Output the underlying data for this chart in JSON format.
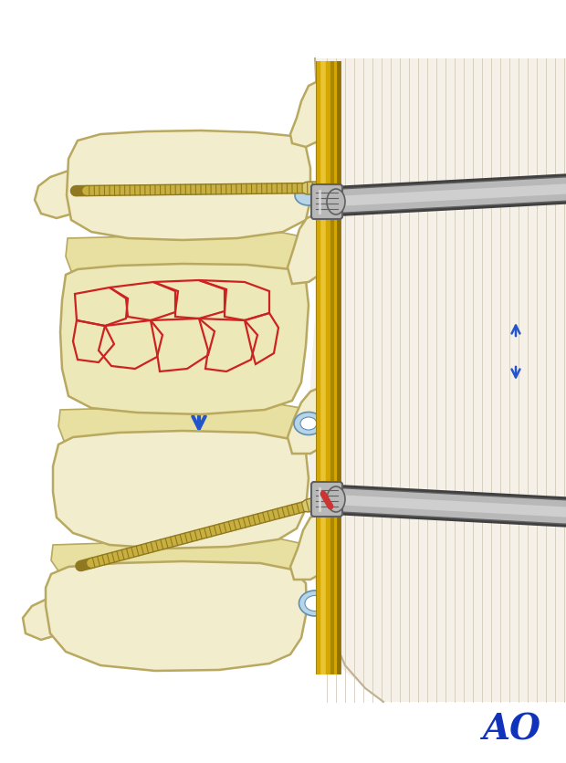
{
  "bg_color": "#ffffff",
  "bone_fill": "#f2edcc",
  "bone_fill_mid": "#ede8b8",
  "bone_fill_dark": "#e8e0a8",
  "bone_outline": "#b8a860",
  "disc_fill": "#e8e0a0",
  "fracture_color": "#cc2222",
  "screw_fill": "#c8b040",
  "screw_outline": "#907820",
  "rod_main": "#d4a800",
  "rod_dark": "#907000",
  "rod_light": "#f0cc40",
  "metal_light": "#e0e0e0",
  "metal_mid": "#b8b8b8",
  "metal_dark": "#606060",
  "metal_shadow": "#404040",
  "arrow_color": "#2255cc",
  "ao_color": "#1133bb",
  "skin_fill": "#f5f0e8",
  "skin_line": "#d0c8b8",
  "blue_fill": "#b8d4e8",
  "blue_outline": "#6090b0",
  "red_accent": "#cc3333",
  "figure_width": 6.2,
  "figure_height": 8.37,
  "dpi": 100
}
